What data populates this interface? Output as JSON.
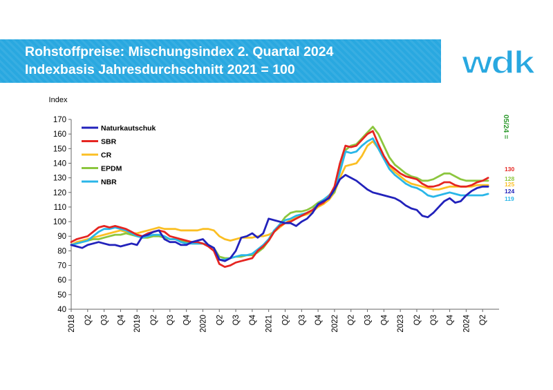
{
  "header": {
    "title_line1": "Rohstoffpreise: Mischungsindex 2. Quartal 2024",
    "title_line2": "Indexbasis Jahresdurchschnitt 2021 = 100"
  },
  "logo": {
    "text": "wdk",
    "color": "#29a8e0"
  },
  "colors": {
    "title_bar": "#29a8e0",
    "axis": "#666666"
  },
  "chart_data": {
    "type": "line",
    "title": "Rohstoffpreise: Mischungsindex 2. Quartal 2024",
    "subtitle": "Indexbasis Jahresdurchschnitt 2021 = 100",
    "ylabel": "Index",
    "ylim": [
      40,
      170
    ],
    "yticks": [
      40,
      50,
      60,
      70,
      80,
      90,
      100,
      110,
      120,
      130,
      140,
      150,
      160,
      170
    ],
    "xlim": [
      2018.0,
      2024.5
    ],
    "x_tick_labels": [
      "2018",
      "Q2",
      "Q3",
      "Q4",
      "2019",
      "Q2",
      "Q3",
      "Q4",
      "2020",
      "Q2",
      "Q3",
      "Q4",
      "2021",
      "Q2",
      "Q3",
      "Q4",
      "2022",
      "Q2",
      "Q3",
      "Q4",
      "2023",
      "Q2",
      "Q3",
      "Q4",
      "2024",
      "Q2"
    ],
    "grid": false,
    "legend_position": "top-left",
    "vertical_annotation": {
      "text": "05/24 =",
      "color": "#2e9a2e"
    },
    "x": [
      2018.0,
      2018.083,
      2018.167,
      2018.25,
      2018.333,
      2018.417,
      2018.5,
      2018.583,
      2018.667,
      2018.75,
      2018.833,
      2018.917,
      2019.0,
      2019.083,
      2019.167,
      2019.25,
      2019.333,
      2019.417,
      2019.5,
      2019.583,
      2019.667,
      2019.75,
      2019.833,
      2019.917,
      2020.0,
      2020.083,
      2020.167,
      2020.25,
      2020.333,
      2020.417,
      2020.5,
      2020.583,
      2020.667,
      2020.75,
      2020.833,
      2020.917,
      2021.0,
      2021.083,
      2021.167,
      2021.25,
      2021.333,
      2021.417,
      2021.5,
      2021.583,
      2021.667,
      2021.75,
      2021.833,
      2021.917,
      2022.0,
      2022.083,
      2022.167,
      2022.25,
      2022.333,
      2022.417,
      2022.5,
      2022.583,
      2022.667,
      2022.75,
      2022.833,
      2022.917,
      2023.0,
      2023.083,
      2023.167,
      2023.25,
      2023.333,
      2023.417,
      2023.5,
      2023.583,
      2023.667,
      2023.75,
      2023.833,
      2023.917,
      2024.0,
      2024.083,
      2024.167,
      2024.25,
      2024.333
    ],
    "series": [
      {
        "name": "Naturkautschuk",
        "color": "#2222bb",
        "end_label": "124",
        "values": [
          84,
          83,
          82,
          84,
          85,
          86,
          85,
          84,
          84,
          83,
          84,
          85,
          84,
          90,
          91,
          93,
          94,
          88,
          86,
          86,
          84,
          84,
          86,
          87,
          88,
          84,
          82,
          74,
          73,
          75,
          80,
          89,
          90,
          92,
          89,
          92,
          102,
          101,
          100,
          99,
          99,
          97,
          100,
          102,
          106,
          112,
          114,
          116,
          122,
          129,
          132,
          130,
          128,
          125,
          122,
          120,
          119,
          118,
          117,
          116,
          114,
          111,
          109,
          108,
          104,
          103,
          106,
          110,
          114,
          116,
          113,
          114,
          118,
          121,
          123,
          124,
          124
        ]
      },
      {
        "name": "SBR",
        "color": "#e52521",
        "end_label": "130",
        "values": [
          86,
          88,
          89,
          90,
          93,
          96,
          97,
          96,
          97,
          96,
          95,
          93,
          91,
          90,
          92,
          93,
          94,
          93,
          90,
          89,
          88,
          87,
          86,
          86,
          85,
          83,
          80,
          71,
          69,
          70,
          72,
          73,
          74,
          75,
          80,
          83,
          87,
          93,
          97,
          99,
          100,
          102,
          104,
          106,
          108,
          111,
          113,
          117,
          124,
          140,
          152,
          151,
          152,
          156,
          160,
          162,
          153,
          145,
          139,
          136,
          133,
          131,
          130,
          129,
          126,
          124,
          124,
          125,
          127,
          127,
          125,
          124,
          124,
          125,
          127,
          128,
          130
        ]
      },
      {
        "name": "CR",
        "color": "#fbbf24",
        "end_label": "125",
        "values": [
          84,
          86,
          87,
          88,
          89,
          90,
          91,
          92,
          93,
          94,
          93,
          92,
          92,
          93,
          94,
          95,
          96,
          95,
          95,
          95,
          94,
          94,
          94,
          94,
          95,
          95,
          94,
          90,
          88,
          87,
          88,
          89,
          89,
          89,
          90,
          90,
          91,
          93,
          96,
          99,
          101,
          103,
          104,
          105,
          107,
          110,
          112,
          115,
          120,
          130,
          138,
          139,
          140,
          145,
          152,
          155,
          150,
          143,
          138,
          134,
          131,
          128,
          126,
          125,
          124,
          123,
          122,
          122,
          123,
          124,
          124,
          124,
          124,
          124,
          125,
          125,
          125
        ]
      },
      {
        "name": "EPDM",
        "color": "#8cc63e",
        "end_label": "128",
        "values": [
          84,
          85,
          86,
          87,
          88,
          88,
          89,
          90,
          91,
          91,
          92,
          91,
          90,
          89,
          89,
          90,
          90,
          89,
          88,
          88,
          87,
          86,
          85,
          85,
          85,
          84,
          82,
          76,
          75,
          75,
          76,
          76,
          77,
          77,
          79,
          82,
          87,
          93,
          98,
          103,
          106,
          107,
          107,
          108,
          110,
          113,
          115,
          117,
          120,
          135,
          149,
          152,
          153,
          157,
          161,
          165,
          160,
          152,
          144,
          139,
          136,
          133,
          131,
          130,
          128,
          128,
          129,
          131,
          133,
          133,
          131,
          129,
          128,
          128,
          128,
          128,
          128
        ]
      },
      {
        "name": "NBR",
        "color": "#29b6e8",
        "end_label": "119",
        "values": [
          84,
          85,
          86,
          87,
          90,
          93,
          95,
          95,
          96,
          95,
          94,
          92,
          90,
          89,
          90,
          91,
          91,
          90,
          88,
          88,
          86,
          85,
          85,
          85,
          85,
          84,
          82,
          74,
          74,
          75,
          76,
          77,
          77,
          78,
          81,
          84,
          88,
          94,
          98,
          101,
          102,
          104,
          105,
          106,
          108,
          112,
          115,
          118,
          122,
          134,
          148,
          147,
          148,
          152,
          155,
          157,
          150,
          143,
          136,
          132,
          129,
          126,
          124,
          123,
          121,
          118,
          117,
          118,
          119,
          120,
          119,
          118,
          118,
          118,
          118,
          118,
          119
        ]
      }
    ]
  }
}
